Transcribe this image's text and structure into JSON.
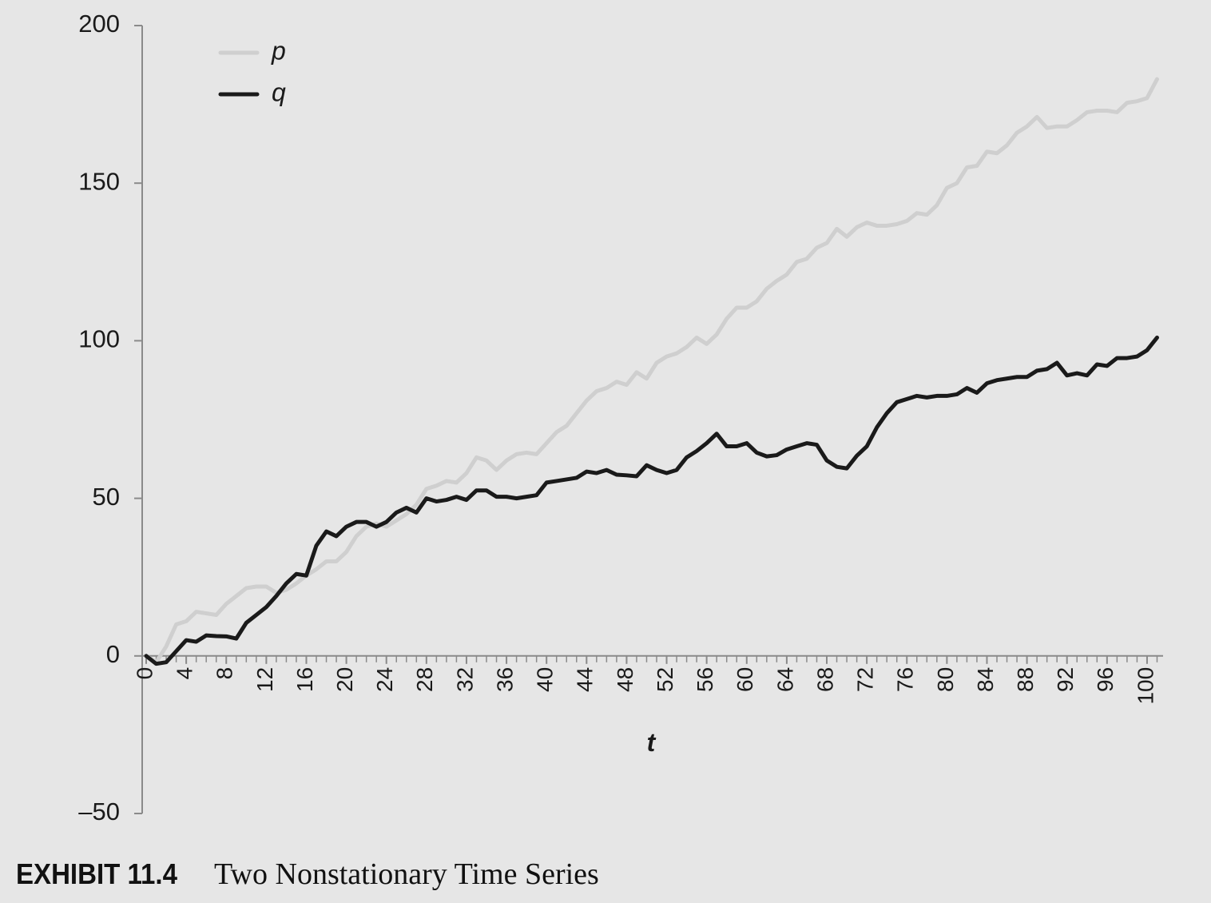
{
  "chart_data": {
    "type": "line",
    "x_label": "t",
    "caption_label": "EXHIBIT 11.4",
    "caption": "Two Nonstationary Time Series",
    "x": [
      0,
      1,
      2,
      3,
      4,
      5,
      6,
      7,
      8,
      9,
      10,
      11,
      12,
      13,
      14,
      15,
      16,
      17,
      18,
      19,
      20,
      21,
      22,
      23,
      24,
      25,
      26,
      27,
      28,
      29,
      30,
      31,
      32,
      33,
      34,
      35,
      36,
      37,
      38,
      39,
      40,
      41,
      42,
      43,
      44,
      45,
      46,
      47,
      48,
      49,
      50,
      51,
      52,
      53,
      54,
      55,
      56,
      57,
      58,
      59,
      60,
      61,
      62,
      63,
      64,
      65,
      66,
      67,
      68,
      69,
      70,
      71,
      72,
      73,
      74,
      75,
      76,
      77,
      78,
      79,
      80,
      81,
      82,
      83,
      84,
      85,
      86,
      87,
      88,
      89,
      90,
      91,
      92,
      93,
      94,
      95,
      96,
      97,
      98,
      99,
      100,
      101
    ],
    "xlim": [
      -0.4,
      101.6
    ],
    "xticks": [
      0,
      4,
      8,
      12,
      16,
      20,
      24,
      28,
      32,
      36,
      40,
      44,
      48,
      52,
      56,
      60,
      64,
      68,
      72,
      76,
      80,
      84,
      88,
      92,
      96,
      100
    ],
    "ylim": [
      -50,
      200
    ],
    "yticks": [
      {
        "value": -50,
        "label": "–50"
      },
      0,
      50,
      100,
      150,
      200
    ],
    "legend": "upper left",
    "series": [
      {
        "name": "p",
        "color": "#cfcfcf",
        "values": [
          0,
          -2,
          3,
          10,
          11,
          14,
          13.5,
          13,
          16.5,
          19,
          21.5,
          22,
          22,
          20,
          21,
          23,
          25.5,
          27.5,
          30,
          30,
          33,
          38,
          41,
          42,
          41,
          43,
          45,
          48,
          53,
          54,
          55.5,
          55,
          58,
          63,
          62,
          59,
          62,
          64,
          64.5,
          64,
          67.5,
          71,
          73,
          77,
          81,
          84,
          85,
          87,
          86,
          90,
          88,
          93,
          95,
          96,
          98,
          101,
          99,
          102,
          107,
          110.5,
          110.5,
          112.5,
          116.5,
          119,
          121,
          125,
          126,
          129.5,
          131,
          135.5,
          133,
          136,
          137.5,
          136.5,
          136.5,
          137,
          138,
          140.5,
          140,
          143,
          148.5,
          150,
          155,
          155.5,
          160,
          159.5,
          162,
          166,
          168,
          171,
          167.5,
          168,
          168,
          170,
          172.5,
          173,
          173,
          172.5,
          175.5,
          176,
          177,
          183
        ]
      },
      {
        "name": "q",
        "color": "#1a1a1a",
        "values": [
          0,
          -2.5,
          -2,
          1.5,
          5,
          4.5,
          6.5,
          6.3,
          6.2,
          5.5,
          10.5,
          13,
          15.5,
          19,
          23,
          26,
          25.5,
          35,
          39.5,
          38,
          41,
          42.5,
          42.5,
          41,
          42.5,
          45.5,
          47,
          45.5,
          50,
          49,
          49.5,
          50.5,
          49.5,
          52.5,
          52.5,
          50.5,
          50.5,
          50,
          50.5,
          51,
          55,
          55.5,
          56,
          56.5,
          58.5,
          58,
          59,
          57.5,
          57.3,
          57,
          60.5,
          59,
          58,
          59,
          63,
          65,
          67.5,
          70.5,
          66.5,
          66.5,
          67.5,
          64.5,
          63.3,
          63.7,
          65.5,
          66.5,
          67.5,
          67,
          62,
          60,
          59.5,
          63.5,
          66.5,
          72.5,
          77,
          80.5,
          81.5,
          82.5,
          82,
          82.5,
          82.5,
          83,
          85,
          83.5,
          86.5,
          87.5,
          88,
          88.5,
          88.5,
          90.5,
          91,
          93,
          89,
          89.7,
          89,
          92.5,
          92,
          94.5,
          94.5,
          95,
          97,
          101
        ]
      }
    ]
  }
}
